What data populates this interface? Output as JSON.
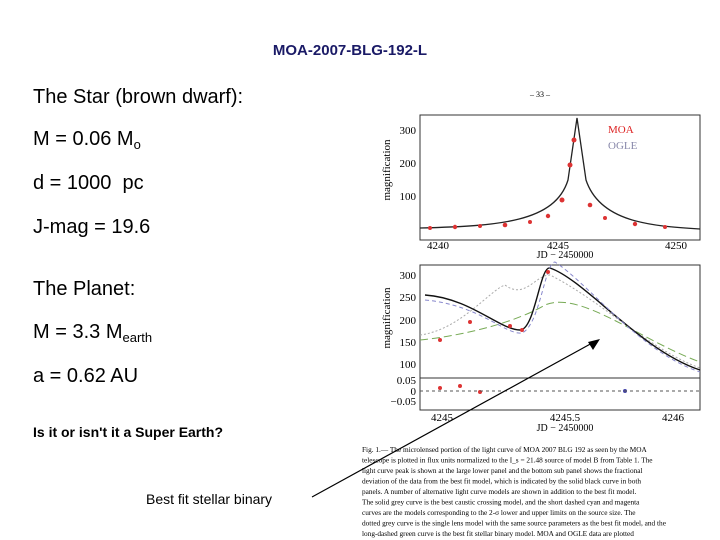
{
  "title": "MOA-2007-BLG-192-L",
  "star": {
    "heading": "The Star (brown dwarf):",
    "mass": {
      "text": "M = 0.06 M",
      "sub": "o"
    },
    "distance": "d = 1000  pc",
    "jmag": "J-mag = 19.6"
  },
  "planet": {
    "heading": "The Planet:",
    "mass": {
      "text": "M = 3.3 M",
      "sub": "earth"
    },
    "axis": "a = 0.62 AU"
  },
  "question": "Is it or isn't it a Super Earth?",
  "arrow_label": "Best fit stellar binary",
  "figure": {
    "page_number": "– 33 –",
    "top_panel": {
      "ylabel": "magnification",
      "yticks": [
        "300",
        "200",
        "100"
      ],
      "xticks": [
        "4240",
        "4245",
        "4250"
      ],
      "xlabel": "JD − 2450000",
      "legend": [
        "MOA",
        "OGLE"
      ]
    },
    "bottom_panel": {
      "ylabel": "magnification",
      "yticks": [
        "300",
        "250",
        "200",
        "150",
        "100"
      ],
      "residual_ticks": [
        "0.05",
        "0",
        "−0.05"
      ],
      "xticks": [
        "4245",
        "4245.5",
        "4246"
      ],
      "xlabel": "JD − 2450000"
    },
    "caption": [
      "Fig. 1.— The microlensed portion of the light curve of MOA 2007 BLG 192 as seen by the MOA",
      "telescope is plotted in flux units normalized to the I_s = 21.48 source of model B from Table 1. The",
      "light curve peak is shown at the large lower panel and the bottom sub panel shows the fractional",
      "deviation of the data from the best fit model, which is indicated by the solid black curve in both",
      "panels. A number of alternative light curve models are shown in addition to the best fit model.",
      "The solid grey curve is the best caustic crossing model, and the short dashed cyan and magenta",
      "curves are the models corresponding to the 2-σ lower and upper limits on the source size. The",
      "dotted grey curve is the single lens model with the same source parameters as the best fit model, and the",
      "long-dashed green curve is the best fit stellar binary model. MOA and OGLE data are plotted"
    ]
  }
}
